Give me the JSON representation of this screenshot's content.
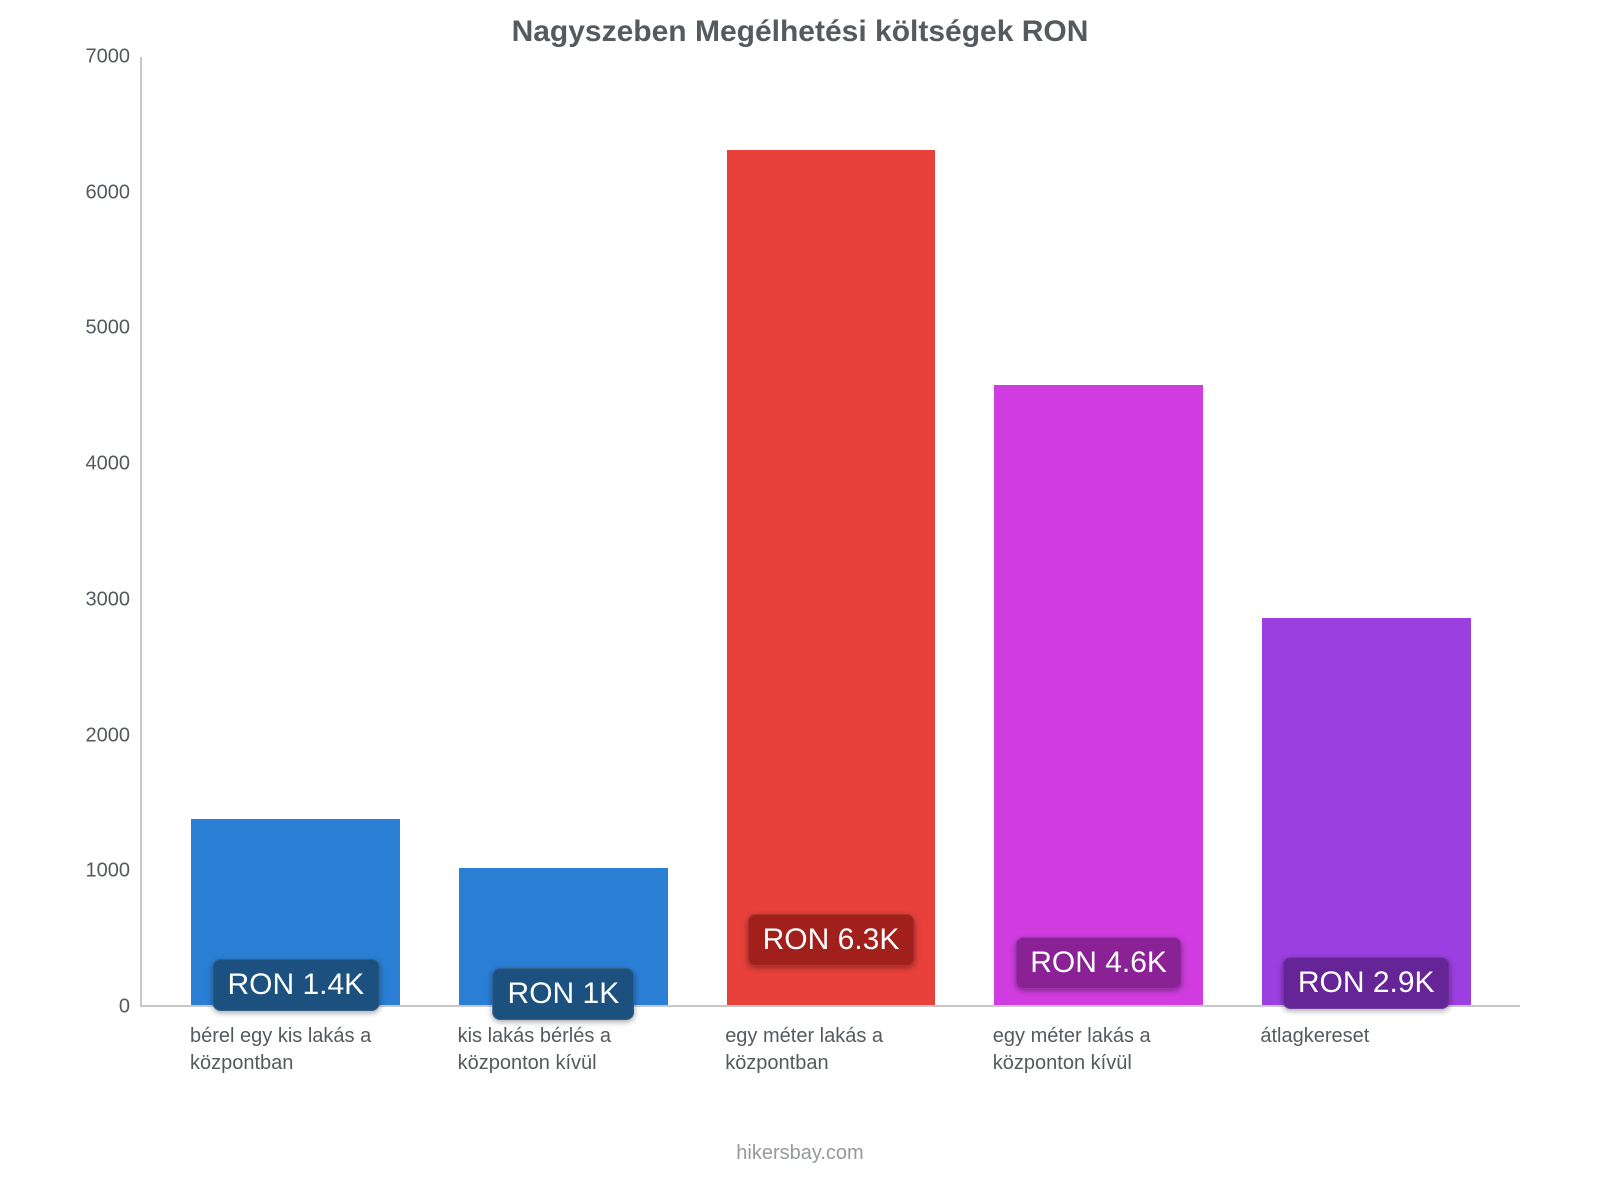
{
  "chart": {
    "type": "bar",
    "title": "Nagyszeben Megélhetési költségek RON",
    "title_fontsize": 30,
    "title_color": "#555a5f",
    "background_color": "#ffffff",
    "axis_color": "#c8c8c8",
    "tick_color": "#555a5f",
    "tick_fontsize": 20,
    "xlabel_fontsize": 20,
    "value_label_fontsize": 30,
    "ylim": [
      0,
      7000
    ],
    "ytick_step": 1000,
    "yticks": [
      "0",
      "1000",
      "2000",
      "3000",
      "4000",
      "5000",
      "6000",
      "7000"
    ],
    "bar_width": 0.78,
    "categories": [
      "bérel egy kis lakás a központban",
      "kis lakás bérlés a központon kívül",
      "egy méter lakás a központban",
      "egy méter lakás a központon kívül",
      "átlagkereset"
    ],
    "values": [
      1370,
      1010,
      6310,
      4580,
      2860
    ],
    "value_labels": [
      "RON 1.4K",
      "RON 1K",
      "RON 6.3K",
      "RON 4.6K",
      "RON 2.9K"
    ],
    "bar_colors": [
      "#2a7ed3",
      "#2a7ed3",
      "#e8403a",
      "#d13ce0",
      "#9b3fe0"
    ],
    "label_bg_colors": [
      "#1b507f",
      "#1b507f",
      "#a1201b",
      "#8a2296",
      "#652596"
    ],
    "label_offsets": [
      150,
      85,
      480,
      310,
      165
    ],
    "credit": "hikersbay.com",
    "credit_color": "#95999d"
  }
}
